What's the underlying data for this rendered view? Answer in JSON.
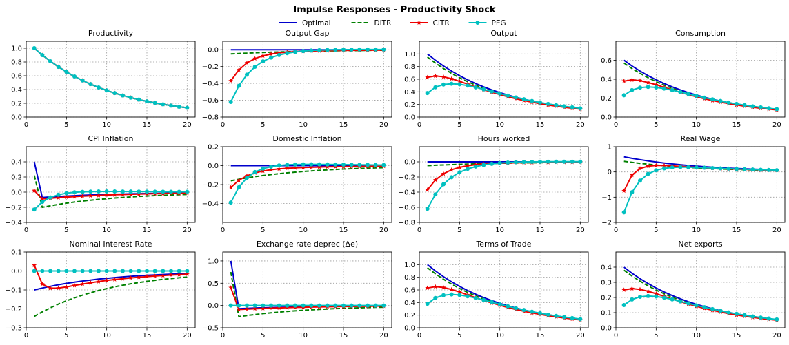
{
  "figure": {
    "title": "Impulse Responses - Productivity Shock"
  },
  "legend": {
    "placement": "top-center",
    "entries": [
      {
        "name": "Optimal",
        "color": "#0000cc",
        "dash": "solid",
        "marker": "none"
      },
      {
        "name": "DITR",
        "color": "#008000",
        "dash": "dashed",
        "marker": "none"
      },
      {
        "name": "CITR",
        "color": "#ee0000",
        "dash": "solid",
        "marker": "star"
      },
      {
        "name": "PEG",
        "color": "#00c0c0",
        "dash": "solid",
        "marker": "circle"
      }
    ]
  },
  "chart_data": [
    {
      "type": "line",
      "title": "Productivity",
      "xlim": [
        0,
        21
      ],
      "ylim": [
        0,
        1.1
      ],
      "xticks": [
        0,
        5,
        10,
        15,
        20
      ],
      "yticks": [
        0,
        0.2,
        0.4,
        0.6,
        0.8,
        1.0
      ],
      "xtick_labels": [
        "0",
        "5",
        "10",
        "15",
        "20"
      ],
      "ytick_labels": [
        "0.0",
        "0.2",
        "0.4",
        "0.6",
        "0.8",
        "1.0"
      ],
      "grid": true,
      "x": [
        1,
        20
      ],
      "series": {
        "Optimal": {
          "v0": 1.0,
          "rho": 0.9
        },
        "DITR": {
          "v0": 1.0,
          "rho": 0.9
        },
        "CITR": {
          "v0": 1.0,
          "rho": 0.9
        },
        "PEG": {
          "v0": 1.0,
          "rho": 0.9
        }
      }
    },
    {
      "type": "line",
      "title": "Output Gap",
      "xlim": [
        0,
        21
      ],
      "ylim": [
        -0.8,
        0.1
      ],
      "xticks": [
        0,
        5,
        10,
        15,
        20
      ],
      "yticks": [
        -0.8,
        -0.6,
        -0.4,
        -0.2,
        0.0
      ],
      "xtick_labels": [
        "0",
        "5",
        "10",
        "15",
        "20"
      ],
      "ytick_labels": [
        "−0.8",
        "−0.6",
        "−0.4",
        "−0.2",
        "0.0"
      ],
      "grid": true,
      "x": [
        1,
        20
      ],
      "series": {
        "Optimal": {
          "v0": 0.0,
          "rho": 0.9
        },
        "DITR": {
          "v0": -0.05,
          "rho": 0.9
        },
        "CITR": {
          "v0": -0.37,
          "rho": 0.62,
          "a": 0.9,
          "c": -0.035
        },
        "PEG": {
          "v0": -0.62,
          "rho": 0.7,
          "a": 0.9,
          "c": 0.025
        }
      }
    },
    {
      "type": "line",
      "title": "Output",
      "xlim": [
        0,
        21
      ],
      "ylim": [
        0,
        1.2
      ],
      "xticks": [
        0,
        5,
        10,
        15,
        20
      ],
      "yticks": [
        0,
        0.2,
        0.4,
        0.6,
        0.8,
        1.0
      ],
      "xtick_labels": [
        "0",
        "5",
        "10",
        "15",
        "20"
      ],
      "ytick_labels": [
        "0.0",
        "0.2",
        "0.4",
        "0.6",
        "0.8",
        "1.0"
      ],
      "grid": true,
      "x": [
        1,
        20
      ],
      "series": {
        "Optimal": {
          "v0": 1.0,
          "rho": 0.9
        },
        "DITR": {
          "v0": 0.95,
          "rho": 0.9
        },
        "CITR": {
          "v0": 0.63,
          "rho": 0.62,
          "a": 0.9,
          "c": 0.93
        },
        "PEG": {
          "v0": 0.38,
          "rho": 0.7,
          "a": 0.9,
          "c": 1.03
        }
      }
    },
    {
      "type": "line",
      "title": "Consumption",
      "xlim": [
        0,
        21
      ],
      "ylim": [
        0,
        0.8
      ],
      "xticks": [
        0,
        5,
        10,
        15,
        20
      ],
      "yticks": [
        0,
        0.2,
        0.4,
        0.6
      ],
      "xtick_labels": [
        "0",
        "5",
        "10",
        "15",
        "20"
      ],
      "ytick_labels": [
        "0.0",
        "0.2",
        "0.4",
        "0.6"
      ],
      "grid": true,
      "x": [
        1,
        20
      ],
      "series": {
        "Optimal": {
          "v0": 0.6,
          "rho": 0.9
        },
        "DITR": {
          "v0": 0.57,
          "rho": 0.9
        },
        "CITR": {
          "v0": 0.38,
          "rho": 0.62,
          "a": 0.9,
          "c": 0.56
        },
        "PEG": {
          "v0": 0.23,
          "rho": 0.7,
          "a": 0.9,
          "c": 0.62
        }
      }
    },
    {
      "type": "line",
      "title": "CPI Inflation",
      "xlim": [
        0,
        21
      ],
      "ylim": [
        -0.4,
        0.6
      ],
      "xticks": [
        0,
        5,
        10,
        15,
        20
      ],
      "yticks": [
        -0.4,
        -0.2,
        0.0,
        0.2,
        0.4
      ],
      "xtick_labels": [
        "0",
        "5",
        "10",
        "15",
        "20"
      ],
      "ytick_labels": [
        "−0.4",
        "−0.2",
        "0.0",
        "0.2",
        "0.4"
      ],
      "grid": true,
      "x": [
        1,
        20
      ],
      "series": {
        "Optimal": {
          "v0": 0.4,
          "rho": 0.9,
          "rest": -0.07
        },
        "DITR": {
          "v0": 0.22,
          "rho": 0.9,
          "rest": -0.2
        },
        "CITR": {
          "v0": 0.02,
          "rho": 0.9,
          "rest": -0.09
        },
        "PEG": {
          "v0": -0.23,
          "rho": 0.6,
          "a": 0.9,
          "c": 0.03
        }
      }
    },
    {
      "type": "line",
      "title": "Domestic Inflation",
      "xlim": [
        0,
        21
      ],
      "ylim": [
        -0.6,
        0.2
      ],
      "xticks": [
        0,
        5,
        10,
        15,
        20
      ],
      "yticks": [
        -0.4,
        -0.2,
        0.0,
        0.2
      ],
      "xtick_labels": [
        "0",
        "5",
        "10",
        "15",
        "20"
      ],
      "ytick_labels": [
        "−0.4",
        "−0.2",
        "0.0",
        "0.2"
      ],
      "grid": true,
      "x": [
        1,
        20
      ],
      "series": {
        "Optimal": {
          "v0": 0.0,
          "rho": 0.9
        },
        "DITR": {
          "v0": -0.16,
          "rho": 0.9
        },
        "CITR": {
          "v0": -0.23,
          "rho": 0.62,
          "a": 0.9,
          "c": -0.045
        },
        "PEG": {
          "v0": -0.39,
          "rho": 0.62,
          "a": 0.9,
          "c": 0.05
        }
      }
    },
    {
      "type": "line",
      "title": "Hours worked",
      "xlim": [
        0,
        21
      ],
      "ylim": [
        -0.8,
        0.2
      ],
      "xticks": [
        0,
        5,
        10,
        15,
        20
      ],
      "yticks": [
        -0.8,
        -0.6,
        -0.4,
        -0.2,
        0.0
      ],
      "xtick_labels": [
        "0",
        "5",
        "10",
        "15",
        "20"
      ],
      "ytick_labels": [
        "−0.8",
        "−0.6",
        "−0.4",
        "−0.2",
        "0.0"
      ],
      "grid": true,
      "x": [
        1,
        20
      ],
      "series": {
        "Optimal": {
          "v0": 0.0,
          "rho": 0.9
        },
        "DITR": {
          "v0": -0.05,
          "rho": 0.9
        },
        "CITR": {
          "v0": -0.37,
          "rho": 0.62,
          "a": 0.9,
          "c": -0.035
        },
        "PEG": {
          "v0": -0.62,
          "rho": 0.7,
          "a": 0.9,
          "c": 0.025
        }
      }
    },
    {
      "type": "line",
      "title": "Real Wage",
      "xlim": [
        0,
        21
      ],
      "ylim": [
        -2,
        1
      ],
      "xticks": [
        0,
        5,
        10,
        15,
        20
      ],
      "yticks": [
        -2,
        -1,
        0,
        1
      ],
      "xtick_labels": [
        "0",
        "5",
        "10",
        "15",
        "20"
      ],
      "ytick_labels": [
        "−2",
        "−1",
        "0",
        "1"
      ],
      "grid": true,
      "x": [
        1,
        20
      ],
      "series": {
        "Optimal": {
          "v0": 0.6,
          "rho": 0.9
        },
        "DITR": {
          "v0": 0.42,
          "rho": 0.9
        },
        "CITR": {
          "v0": -0.75,
          "rho": 0.45,
          "a": 0.9,
          "c": 0.47
        },
        "PEG": {
          "v0": -1.6,
          "rho": 0.6,
          "a": 0.9,
          "c": 0.52
        }
      }
    },
    {
      "type": "line",
      "title": "Nominal Interest Rate",
      "xlim": [
        0,
        21
      ],
      "ylim": [
        -0.3,
        0.1
      ],
      "xticks": [
        0,
        5,
        10,
        15,
        20
      ],
      "yticks": [
        -0.3,
        -0.2,
        -0.1,
        0.0,
        0.1
      ],
      "xtick_labels": [
        "0",
        "5",
        "10",
        "15",
        "20"
      ],
      "ytick_labels": [
        "−0.3",
        "−0.2",
        "−0.1",
        "0.0",
        "0.1"
      ],
      "grid": true,
      "x": [
        1,
        20
      ],
      "series": {
        "Optimal": {
          "v0": -0.1,
          "rho": 0.9
        },
        "DITR": {
          "v0": -0.24,
          "rho": 0.9
        },
        "CITR": {
          "v0": 0.03,
          "rho": 0.3,
          "a": 0.9,
          "c": -0.13
        },
        "PEG": {
          "v0": 0.0,
          "rho": 0.9
        }
      }
    },
    {
      "type": "line",
      "title": "Exchange rate deprec (Δe)",
      "xlim": [
        0,
        21
      ],
      "ylim": [
        -0.5,
        1.2
      ],
      "xticks": [
        0,
        5,
        10,
        15,
        20
      ],
      "yticks": [
        -0.5,
        0.0,
        0.5,
        1.0
      ],
      "xtick_labels": [
        "0",
        "5",
        "10",
        "15",
        "20"
      ],
      "ytick_labels": [
        "−0.5",
        "0.0",
        "0.5",
        "1.0"
      ],
      "grid": true,
      "x": [
        1,
        20
      ],
      "series": {
        "Optimal": {
          "v0": 1.0,
          "rho": 0.9,
          "rest": -0.07
        },
        "DITR": {
          "v0": 0.75,
          "rho": 0.9,
          "rest": -0.25
        },
        "CITR": {
          "v0": 0.4,
          "rho": 0.9,
          "rest": -0.09
        },
        "PEG": {
          "v0": 0.0,
          "rho": 0.9
        }
      }
    },
    {
      "type": "line",
      "title": "Terms of Trade",
      "xlim": [
        0,
        21
      ],
      "ylim": [
        0,
        1.2
      ],
      "xticks": [
        0,
        5,
        10,
        15,
        20
      ],
      "yticks": [
        0,
        0.2,
        0.4,
        0.6,
        0.8,
        1.0
      ],
      "xtick_labels": [
        "0",
        "5",
        "10",
        "15",
        "20"
      ],
      "ytick_labels": [
        "0.0",
        "0.2",
        "0.4",
        "0.6",
        "0.8",
        "1.0"
      ],
      "grid": true,
      "x": [
        1,
        20
      ],
      "series": {
        "Optimal": {
          "v0": 1.0,
          "rho": 0.9
        },
        "DITR": {
          "v0": 0.95,
          "rho": 0.9
        },
        "CITR": {
          "v0": 0.63,
          "rho": 0.62,
          "a": 0.9,
          "c": 0.93
        },
        "PEG": {
          "v0": 0.38,
          "rho": 0.7,
          "a": 0.9,
          "c": 1.03
        }
      }
    },
    {
      "type": "line",
      "title": "Net exports",
      "xlim": [
        0,
        21
      ],
      "ylim": [
        0,
        0.5
      ],
      "xticks": [
        0,
        5,
        10,
        15,
        20
      ],
      "yticks": [
        0,
        0.1,
        0.2,
        0.3,
        0.4
      ],
      "xtick_labels": [
        "0",
        "5",
        "10",
        "15",
        "20"
      ],
      "ytick_labels": [
        "0.0",
        "0.1",
        "0.2",
        "0.3",
        "0.4"
      ],
      "grid": true,
      "x": [
        1,
        20
      ],
      "series": {
        "Optimal": {
          "v0": 0.4,
          "rho": 0.9
        },
        "DITR": {
          "v0": 0.38,
          "rho": 0.9
        },
        "CITR": {
          "v0": 0.25,
          "rho": 0.62,
          "a": 0.9,
          "c": 0.37
        },
        "PEG": {
          "v0": 0.15,
          "rho": 0.7,
          "a": 0.9,
          "c": 0.41
        }
      }
    }
  ]
}
